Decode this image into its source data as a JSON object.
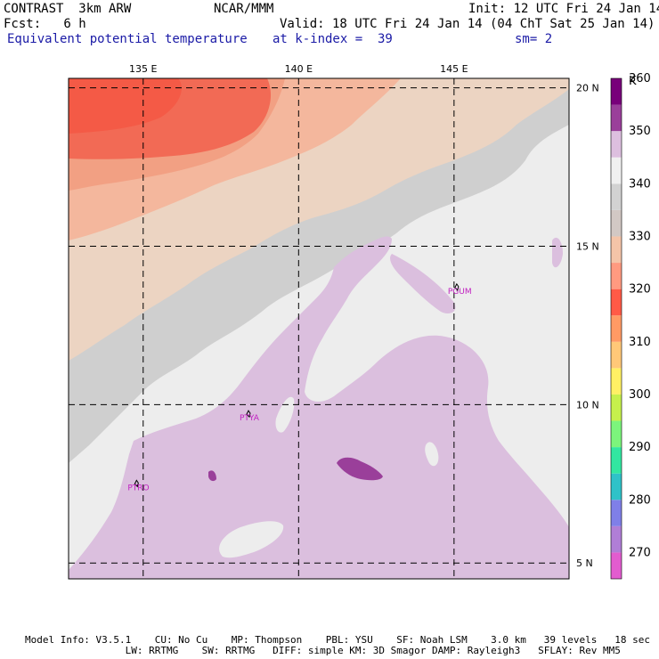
{
  "header": {
    "model": "CONTRAST  3km ARW",
    "org": "NCAR/MMM",
    "init": "Init: 12 UTC Fri 24 Jan 14",
    "fcst": "Fcst:   6 h",
    "valid": "Valid: 18 UTC Fri 24 Jan 14 (04 ChT Sat 25 Jan 14)",
    "field": "Equivalent potential temperature",
    "kindex": "at k-index =  39",
    "sm": "sm= 2"
  },
  "chart_data": {
    "type": "heatmap",
    "title": "Equivalent potential temperature",
    "units": "K",
    "x_ticks": [
      "135 E",
      "140 E",
      "145 E"
    ],
    "y_ticks": [
      "20 N",
      "15 N",
      "10 N",
      "5 N"
    ],
    "x_tick_values": [
      135,
      140,
      145
    ],
    "y_tick_values": [
      20,
      15,
      10,
      5
    ],
    "xlim": [
      132.6,
      148.7
    ],
    "ylim": [
      4.5,
      20.3
    ],
    "grid": true,
    "colorbar": {
      "levels": [
        "270",
        "280",
        "290",
        "300",
        "310",
        "320",
        "330",
        "340",
        "350",
        "360"
      ],
      "colors": [
        "#e25ccf",
        "#b07ed6",
        "#7f7fe8",
        "#2fc2c8",
        "#32e7a1",
        "#7cf57c",
        "#c6f04c",
        "#fff064",
        "#ffc878",
        "#ff9a64",
        "#ff5a46",
        "#ff9a80",
        "#f4c4a8",
        "#d2c8c4",
        "#d2d2d2",
        "#f0f0f0",
        "#ddbfdf",
        "#9a3f9a",
        "#78007a"
      ]
    },
    "stations": [
      {
        "name": "PGUM",
        "lon": 144.8,
        "lat": 13.5
      },
      {
        "name": "PTYA",
        "lon": 138.1,
        "lat": 9.5
      },
      {
        "name": "PTRO",
        "lon": 134.5,
        "lat": 7.3
      }
    ]
  },
  "footer": {
    "line1": "Model Info: V3.5.1    CU: No Cu    MP: Thompson    PBL: YSU    SF: Noah LSM    3.0 km   39 levels   18 sec",
    "line2": "                 LW: RRTMG    SW: RRTMG   DIFF: simple KM: 3D Smagor DAMP: Rayleigh3   SFLAY: Rev MM5"
  }
}
